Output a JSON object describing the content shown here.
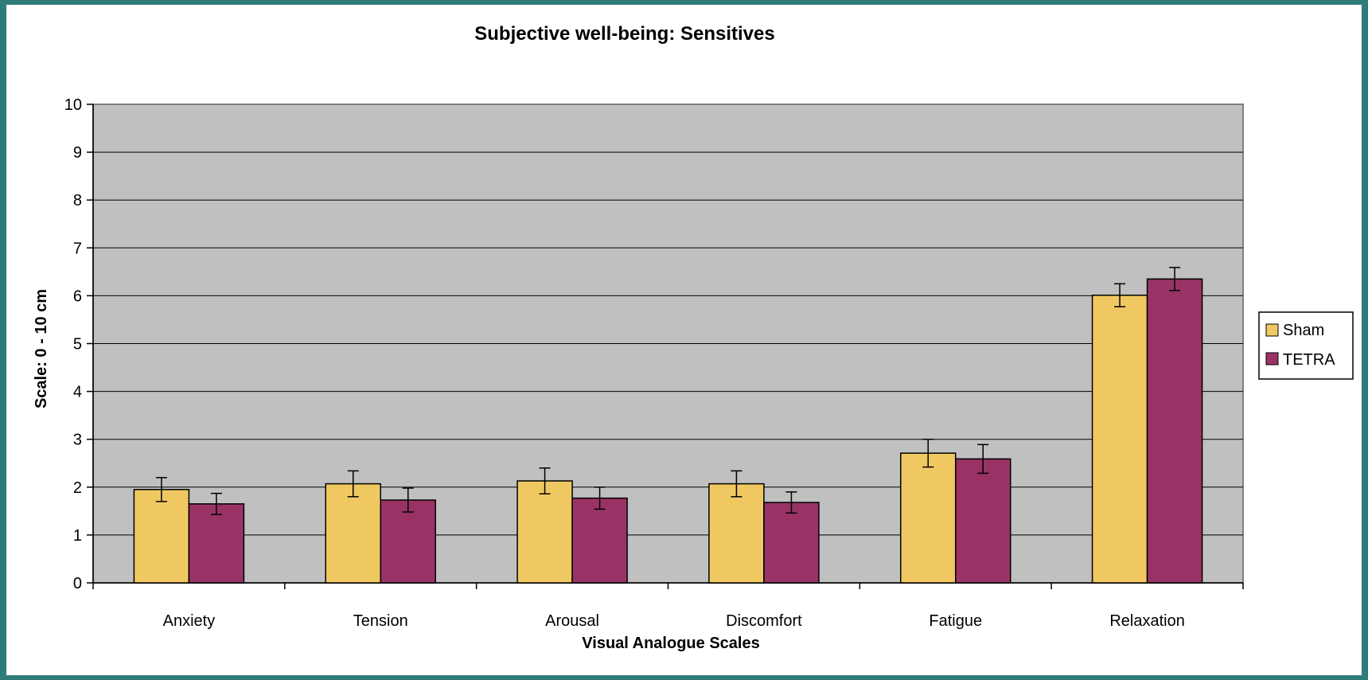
{
  "chart_data": {
    "type": "bar",
    "title": "Subjective well-being:  Sensitives",
    "xlabel": "Visual Analogue Scales",
    "ylabel": "Scale:  0 - 10 cm",
    "categories": [
      "Anxiety",
      "Tension",
      "Arousal",
      "Discomfort",
      "Fatigue",
      "Relaxation"
    ],
    "ylim": [
      0,
      10
    ],
    "yticks": [
      "0",
      "1",
      "2",
      "3",
      "4",
      "5",
      "6",
      "7",
      "8",
      "9",
      "10"
    ],
    "grid": true,
    "legend_position": "right",
    "series": [
      {
        "name": "Sham",
        "color": "#f0c862",
        "values": [
          1.95,
          2.07,
          2.13,
          2.07,
          2.71,
          6.01
        ],
        "errors": [
          0.25,
          0.27,
          0.27,
          0.27,
          0.29,
          0.24
        ]
      },
      {
        "name": "TETRA",
        "color": "#993366",
        "values": [
          1.65,
          1.73,
          1.77,
          1.68,
          2.59,
          6.35
        ],
        "errors": [
          0.22,
          0.25,
          0.23,
          0.22,
          0.3,
          0.24
        ]
      }
    ],
    "plot_background": "#c0c0c0"
  }
}
